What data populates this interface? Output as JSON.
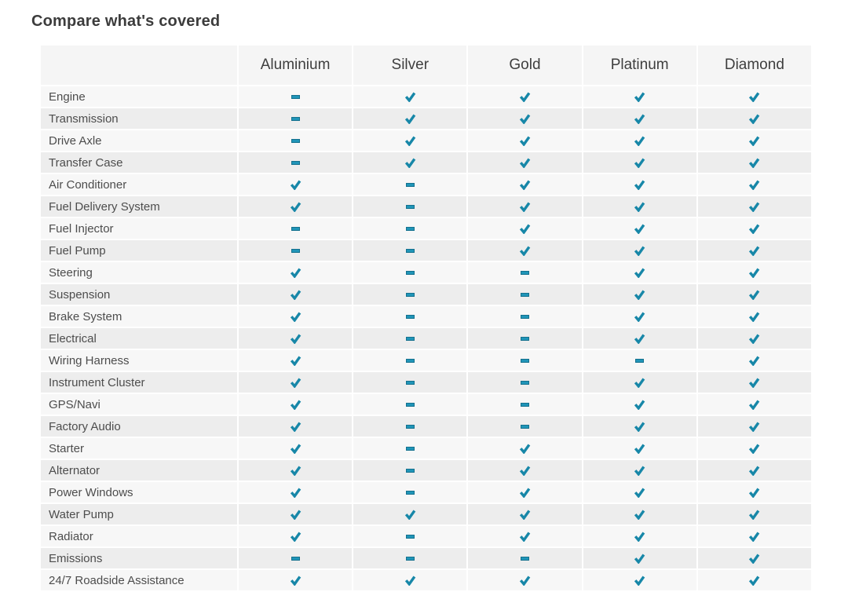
{
  "title": "Compare what's covered",
  "colors": {
    "check": "#1787a8",
    "dash_fill": "#2095b8",
    "dash_border": "#15718e",
    "header_bg": "#f5f5f5",
    "row_odd_bg": "#f7f7f7",
    "row_even_bg": "#ededed",
    "title_color": "#3c3c3c",
    "label_color": "#4d4d4d"
  },
  "table": {
    "columns": [
      "Aluminium",
      "Silver",
      "Gold",
      "Platinum",
      "Diamond"
    ],
    "icons": {
      "covered": "check-icon",
      "not_covered": "dash-icon"
    },
    "rows": [
      {
        "label": "Engine",
        "values": [
          "dash",
          "check",
          "check",
          "check",
          "check"
        ]
      },
      {
        "label": "Transmission",
        "values": [
          "dash",
          "check",
          "check",
          "check",
          "check"
        ]
      },
      {
        "label": "Drive Axle",
        "values": [
          "dash",
          "check",
          "check",
          "check",
          "check"
        ]
      },
      {
        "label": "Transfer Case",
        "values": [
          "dash",
          "check",
          "check",
          "check",
          "check"
        ]
      },
      {
        "label": "Air Conditioner",
        "values": [
          "check",
          "dash",
          "check",
          "check",
          "check"
        ]
      },
      {
        "label": "Fuel Delivery System",
        "values": [
          "check",
          "dash",
          "check",
          "check",
          "check"
        ]
      },
      {
        "label": "Fuel Injector",
        "values": [
          "dash",
          "dash",
          "check",
          "check",
          "check"
        ]
      },
      {
        "label": "Fuel Pump",
        "values": [
          "dash",
          "dash",
          "check",
          "check",
          "check"
        ]
      },
      {
        "label": "Steering",
        "values": [
          "check",
          "dash",
          "dash",
          "check",
          "check"
        ]
      },
      {
        "label": "Suspension",
        "values": [
          "check",
          "dash",
          "dash",
          "check",
          "check"
        ]
      },
      {
        "label": "Brake System",
        "values": [
          "check",
          "dash",
          "dash",
          "check",
          "check"
        ]
      },
      {
        "label": "Electrical",
        "values": [
          "check",
          "dash",
          "dash",
          "check",
          "check"
        ]
      },
      {
        "label": "Wiring Harness",
        "values": [
          "check",
          "dash",
          "dash",
          "dash",
          "check"
        ]
      },
      {
        "label": "Instrument Cluster",
        "values": [
          "check",
          "dash",
          "dash",
          "check",
          "check"
        ]
      },
      {
        "label": "GPS/Navi",
        "values": [
          "check",
          "dash",
          "dash",
          "check",
          "check"
        ]
      },
      {
        "label": "Factory Audio",
        "values": [
          "check",
          "dash",
          "dash",
          "check",
          "check"
        ]
      },
      {
        "label": "Starter",
        "values": [
          "check",
          "dash",
          "check",
          "check",
          "check"
        ]
      },
      {
        "label": "Alternator",
        "values": [
          "check",
          "dash",
          "check",
          "check",
          "check"
        ]
      },
      {
        "label": "Power Windows",
        "values": [
          "check",
          "dash",
          "check",
          "check",
          "check"
        ]
      },
      {
        "label": "Water Pump",
        "values": [
          "check",
          "check",
          "check",
          "check",
          "check"
        ]
      },
      {
        "label": "Radiator",
        "values": [
          "check",
          "dash",
          "check",
          "check",
          "check"
        ]
      },
      {
        "label": "Emissions",
        "values": [
          "dash",
          "dash",
          "dash",
          "check",
          "check"
        ]
      },
      {
        "label": "24/7 Roadside Assistance",
        "values": [
          "check",
          "check",
          "check",
          "check",
          "check"
        ]
      }
    ]
  }
}
